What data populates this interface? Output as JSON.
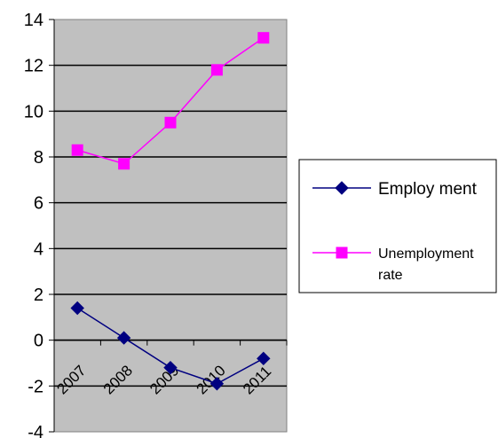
{
  "chart_data": {
    "type": "line",
    "categories": [
      "2007",
      "2008",
      "2009",
      "2010",
      "2011"
    ],
    "series": [
      {
        "name": "Employ ment",
        "values": [
          1.4,
          0.1,
          -1.2,
          -1.9,
          -0.8
        ],
        "color": "#000080",
        "marker": "diamond"
      },
      {
        "name": "Unemployment rate",
        "values": [
          8.3,
          7.7,
          9.5,
          11.8,
          13.2
        ],
        "color": "#ff00ff",
        "marker": "square"
      }
    ],
    "ylim": [
      -4,
      14
    ],
    "ytick_step": 2,
    "grid": true,
    "plot_background": "#c0c0c0",
    "legend_position": "right",
    "title": "",
    "xlabel": "",
    "ylabel": ""
  }
}
